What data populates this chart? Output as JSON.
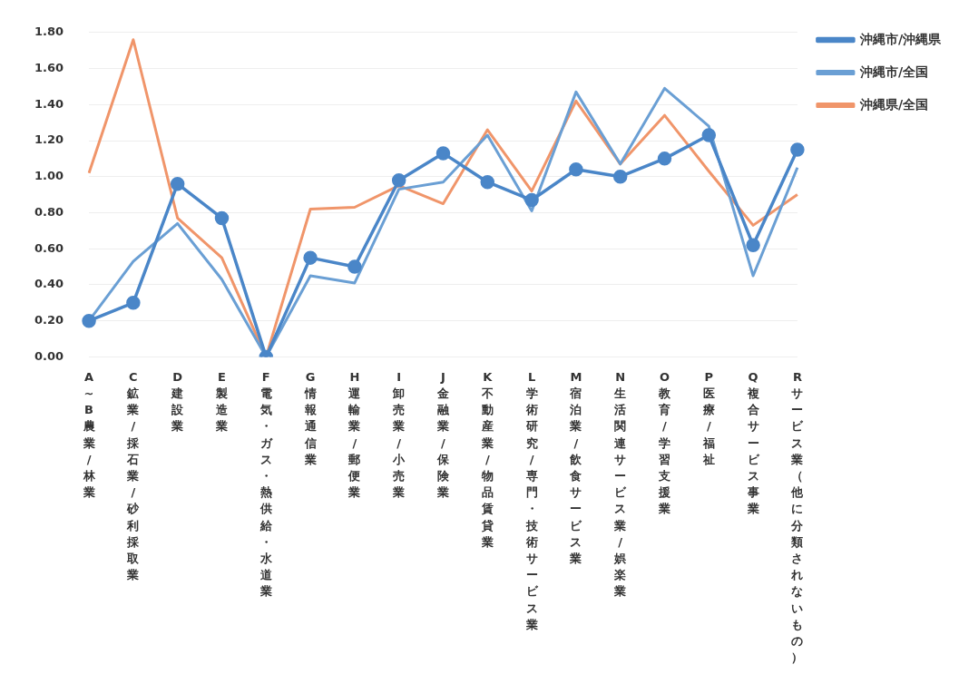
{
  "chart_data": {
    "type": "line",
    "categories": [
      "A~B農業/林業",
      "C鉱業/採石業/砂利採取業",
      "D建設業",
      "E製造業",
      "F電気・ガス・熱供給・水道業",
      "G情報通信業",
      "H運輸業/郵便業",
      "I卸売業/小売業",
      "J金融業/保険業",
      "K不動産業/物品賃貸業",
      "L学術研究/専門・技術サービス業",
      "M宿泊業/飲食サービス業",
      "N生活関連サービス業/娯楽業",
      "O教育/学習支援業",
      "P医療/福祉",
      "Q複合サービス事業",
      "Rサービス業（他に分類されないもの）"
    ],
    "series": [
      {
        "name": "沖縄市/沖縄県",
        "color": "#4a86c8",
        "marker": "circle",
        "values": [
          0.2,
          0.3,
          0.96,
          0.77,
          0.0,
          0.55,
          0.5,
          0.98,
          1.13,
          0.97,
          0.87,
          1.04,
          1.0,
          1.1,
          1.23,
          0.62,
          1.15
        ]
      },
      {
        "name": "沖縄市/全国",
        "color": "#6a9fd4",
        "marker": "none",
        "values": [
          0.2,
          0.53,
          0.74,
          0.43,
          0.0,
          0.45,
          0.41,
          0.93,
          0.97,
          1.23,
          0.81,
          1.47,
          1.07,
          1.49,
          1.28,
          0.45,
          1.05
        ]
      },
      {
        "name": "沖縄県/全国",
        "color": "#f0956a",
        "marker": "none",
        "values": [
          1.02,
          1.76,
          0.77,
          0.55,
          0.0,
          0.82,
          0.83,
          0.95,
          0.85,
          1.26,
          0.92,
          1.42,
          1.07,
          1.34,
          1.03,
          0.73,
          0.9
        ]
      }
    ],
    "ylim": [
      0,
      1.8
    ],
    "yticks": [
      {
        "value": 0,
        "label": "0.00"
      },
      {
        "value": 0.2,
        "label": "0.20"
      },
      {
        "value": 0.4,
        "label": "0.40"
      },
      {
        "value": 0.6,
        "label": "0.60"
      },
      {
        "value": 0.8,
        "label": "0.80"
      },
      {
        "value": 1.0,
        "label": "1.00"
      },
      {
        "value": 1.2,
        "label": "1.20"
      },
      {
        "value": 1.4,
        "label": "1.40"
      },
      {
        "value": 1.6,
        "label": "1.60"
      },
      {
        "value": 1.8,
        "label": "1.80"
      }
    ],
    "grid": "y",
    "legend": "right"
  }
}
